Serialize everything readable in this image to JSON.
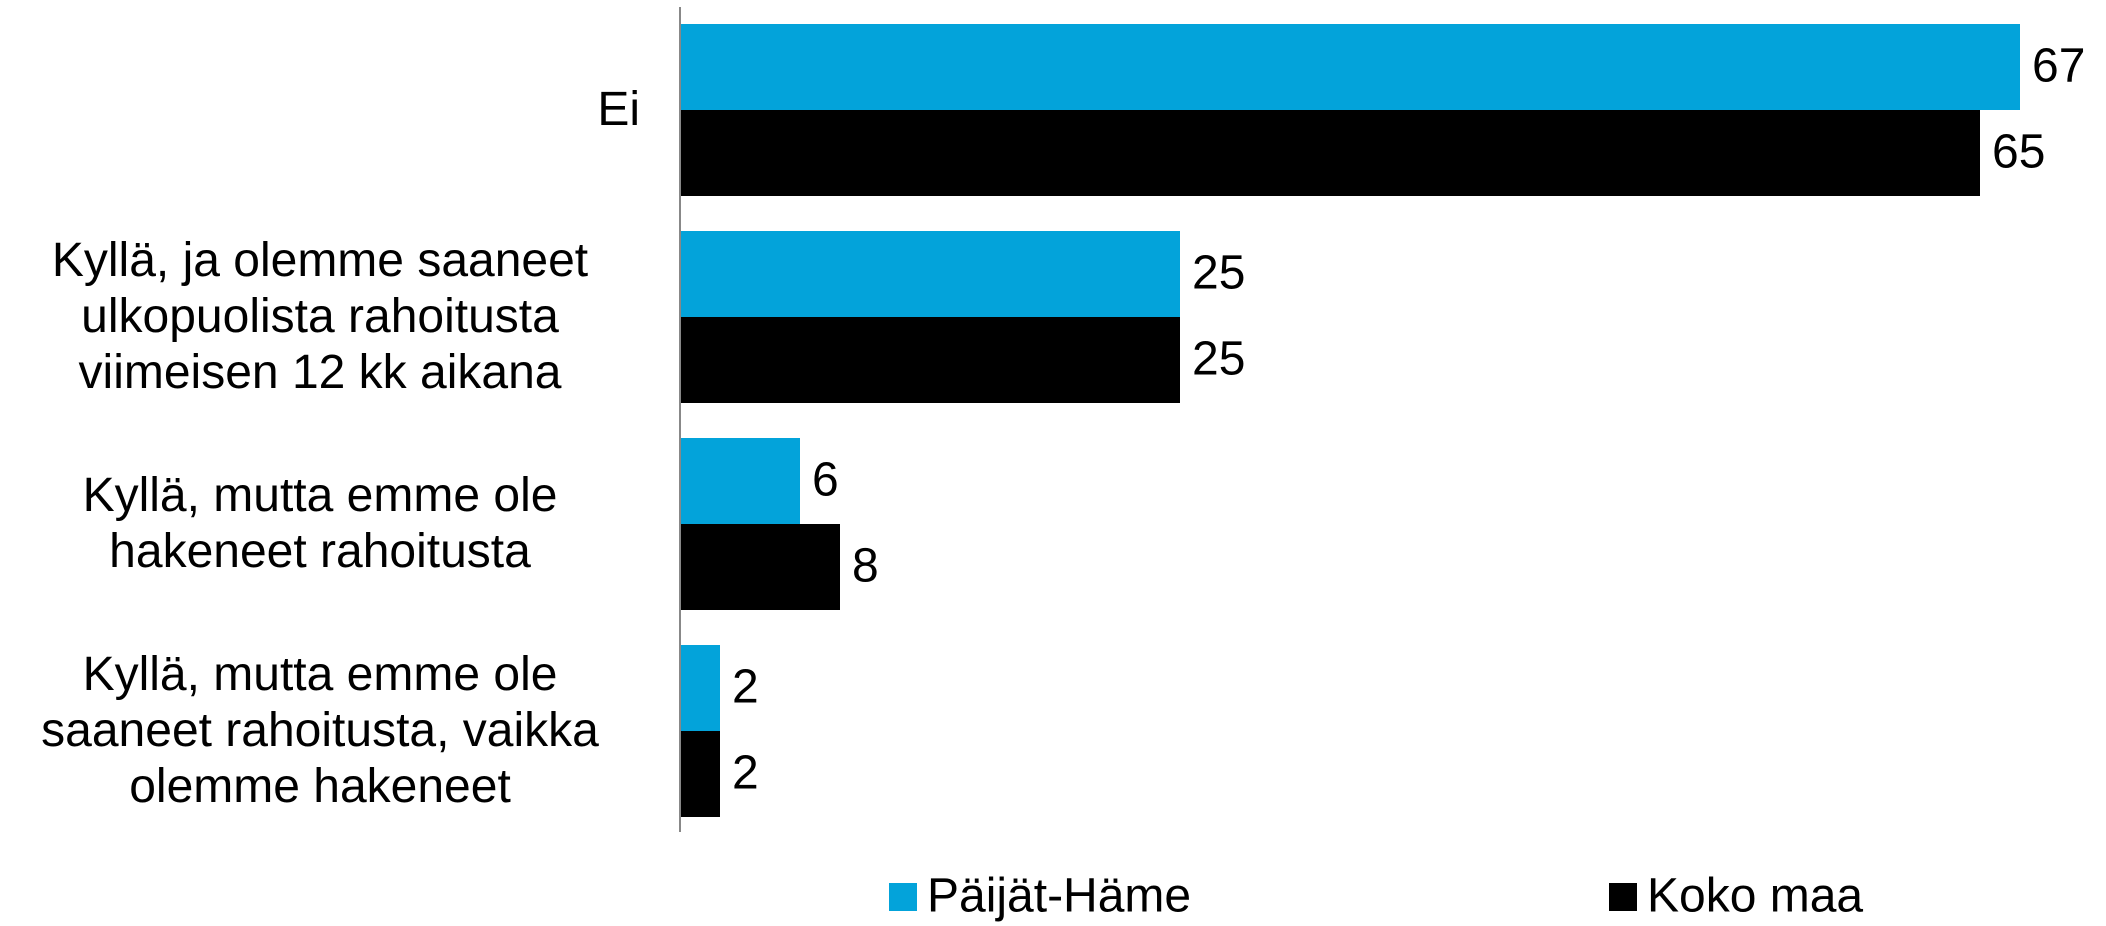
{
  "chart_data": {
    "type": "bar",
    "orientation": "horizontal",
    "categories": [
      "Ei",
      "Kyllä, ja olemme saaneet ulkopuolista rahoitusta viimeisen 12 kk aikana",
      "Kyllä, mutta emme ole hakeneet rahoitusta",
      "Kyllä, mutta emme ole saaneet rahoitusta, vaikka olemme hakeneet"
    ],
    "series": [
      {
        "name": "Päijät-Häme",
        "color": "#03a3da",
        "values": [
          67,
          25,
          6,
          2
        ]
      },
      {
        "name": "Koko maa",
        "color": "#000000",
        "values": [
          65,
          25,
          8,
          2
        ]
      }
    ],
    "xlim": [
      0,
      70
    ],
    "legend": "bottom"
  }
}
